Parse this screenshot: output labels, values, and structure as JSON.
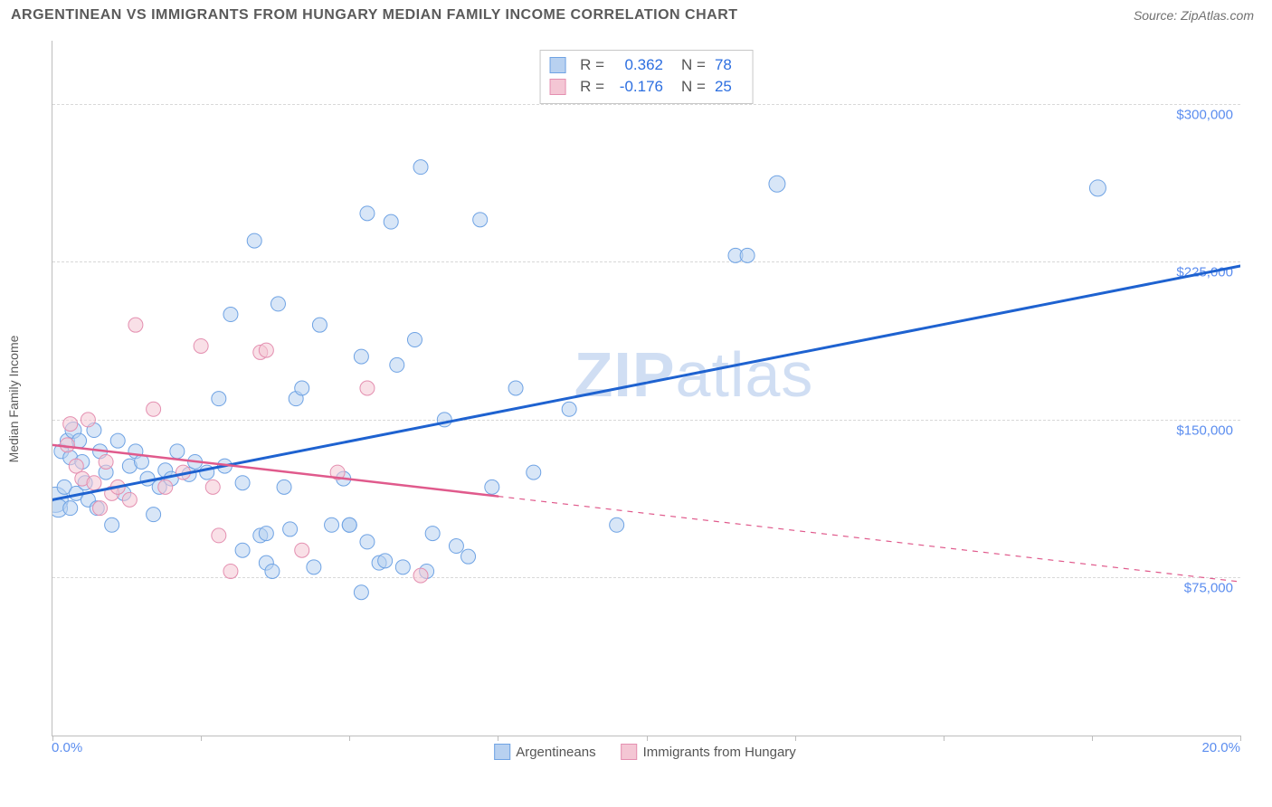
{
  "title": "ARGENTINEAN VS IMMIGRANTS FROM HUNGARY MEDIAN FAMILY INCOME CORRELATION CHART",
  "source": "Source: ZipAtlas.com",
  "ylabel": "Median Family Income",
  "watermark": {
    "bold": "ZIP",
    "thin": "atlas"
  },
  "chart": {
    "type": "scatter",
    "background_color": "#ffffff",
    "grid_color": "#d8d8d8",
    "axis_color": "#bdbdbd",
    "xlim": [
      0,
      20
    ],
    "ylim": [
      0,
      330000
    ],
    "x_ticks": [
      0,
      2.5,
      5,
      7.5,
      10,
      12.5,
      15,
      17.5,
      20
    ],
    "x_tick_labels": {
      "left": "0.0%",
      "right": "20.0%"
    },
    "y_gridlines": [
      75000,
      150000,
      225000,
      300000
    ],
    "y_tick_labels": [
      "$75,000",
      "$150,000",
      "$225,000",
      "$300,000"
    ],
    "series": [
      {
        "name": "Argentineans",
        "fill": "#b8d1f0",
        "stroke": "#6fa3e4",
        "fill_opacity": 0.55,
        "marker_border": 1,
        "points": [
          {
            "x": 0.05,
            "y": 112000,
            "r": 14
          },
          {
            "x": 0.1,
            "y": 108000,
            "r": 10
          },
          {
            "x": 0.15,
            "y": 135000,
            "r": 8
          },
          {
            "x": 0.2,
            "y": 118000,
            "r": 8
          },
          {
            "x": 0.25,
            "y": 140000,
            "r": 8
          },
          {
            "x": 0.3,
            "y": 132000,
            "r": 8
          },
          {
            "x": 0.3,
            "y": 108000,
            "r": 8
          },
          {
            "x": 0.35,
            "y": 145000,
            "r": 9
          },
          {
            "x": 0.4,
            "y": 115000,
            "r": 8
          },
          {
            "x": 0.45,
            "y": 140000,
            "r": 8
          },
          {
            "x": 0.5,
            "y": 130000,
            "r": 8
          },
          {
            "x": 0.55,
            "y": 120000,
            "r": 8
          },
          {
            "x": 0.6,
            "y": 112000,
            "r": 8
          },
          {
            "x": 0.7,
            "y": 145000,
            "r": 8
          },
          {
            "x": 0.75,
            "y": 108000,
            "r": 8
          },
          {
            "x": 0.8,
            "y": 135000,
            "r": 8
          },
          {
            "x": 0.9,
            "y": 125000,
            "r": 8
          },
          {
            "x": 1.0,
            "y": 100000,
            "r": 8
          },
          {
            "x": 1.1,
            "y": 140000,
            "r": 8
          },
          {
            "x": 1.2,
            "y": 115000,
            "r": 8
          },
          {
            "x": 1.3,
            "y": 128000,
            "r": 8
          },
          {
            "x": 1.4,
            "y": 135000,
            "r": 8
          },
          {
            "x": 1.5,
            "y": 130000,
            "r": 8
          },
          {
            "x": 1.6,
            "y": 122000,
            "r": 8
          },
          {
            "x": 1.7,
            "y": 105000,
            "r": 8
          },
          {
            "x": 1.8,
            "y": 118000,
            "r": 8
          },
          {
            "x": 1.9,
            "y": 126000,
            "r": 8
          },
          {
            "x": 2.0,
            "y": 122000,
            "r": 8
          },
          {
            "x": 2.1,
            "y": 135000,
            "r": 8
          },
          {
            "x": 2.3,
            "y": 124000,
            "r": 8
          },
          {
            "x": 2.4,
            "y": 130000,
            "r": 8
          },
          {
            "x": 2.6,
            "y": 125000,
            "r": 8
          },
          {
            "x": 2.8,
            "y": 160000,
            "r": 8
          },
          {
            "x": 2.9,
            "y": 128000,
            "r": 8
          },
          {
            "x": 3.0,
            "y": 200000,
            "r": 8
          },
          {
            "x": 3.2,
            "y": 88000,
            "r": 8
          },
          {
            "x": 3.2,
            "y": 120000,
            "r": 8
          },
          {
            "x": 3.4,
            "y": 235000,
            "r": 8
          },
          {
            "x": 3.5,
            "y": 95000,
            "r": 8
          },
          {
            "x": 3.6,
            "y": 96000,
            "r": 8
          },
          {
            "x": 3.6,
            "y": 82000,
            "r": 8
          },
          {
            "x": 3.7,
            "y": 78000,
            "r": 8
          },
          {
            "x": 3.8,
            "y": 205000,
            "r": 8
          },
          {
            "x": 3.9,
            "y": 118000,
            "r": 8
          },
          {
            "x": 4.0,
            "y": 98000,
            "r": 8
          },
          {
            "x": 4.1,
            "y": 160000,
            "r": 8
          },
          {
            "x": 4.2,
            "y": 165000,
            "r": 8
          },
          {
            "x": 4.4,
            "y": 80000,
            "r": 8
          },
          {
            "x": 4.5,
            "y": 195000,
            "r": 8
          },
          {
            "x": 4.7,
            "y": 100000,
            "r": 8
          },
          {
            "x": 4.9,
            "y": 122000,
            "r": 8
          },
          {
            "x": 5.0,
            "y": 100000,
            "r": 8
          },
          {
            "x": 5.0,
            "y": 100000,
            "r": 8
          },
          {
            "x": 5.2,
            "y": 180000,
            "r": 8
          },
          {
            "x": 5.2,
            "y": 68000,
            "r": 8
          },
          {
            "x": 5.3,
            "y": 248000,
            "r": 8
          },
          {
            "x": 5.3,
            "y": 92000,
            "r": 8
          },
          {
            "x": 5.5,
            "y": 82000,
            "r": 8
          },
          {
            "x": 5.6,
            "y": 83000,
            "r": 8
          },
          {
            "x": 5.7,
            "y": 244000,
            "r": 8
          },
          {
            "x": 5.8,
            "y": 176000,
            "r": 8
          },
          {
            "x": 5.9,
            "y": 80000,
            "r": 8
          },
          {
            "x": 6.1,
            "y": 188000,
            "r": 8
          },
          {
            "x": 6.2,
            "y": 270000,
            "r": 8
          },
          {
            "x": 6.3,
            "y": 78000,
            "r": 8
          },
          {
            "x": 6.4,
            "y": 96000,
            "r": 8
          },
          {
            "x": 6.6,
            "y": 150000,
            "r": 8
          },
          {
            "x": 6.8,
            "y": 90000,
            "r": 8
          },
          {
            "x": 7.0,
            "y": 85000,
            "r": 8
          },
          {
            "x": 7.2,
            "y": 245000,
            "r": 8
          },
          {
            "x": 7.4,
            "y": 118000,
            "r": 8
          },
          {
            "x": 7.8,
            "y": 165000,
            "r": 8
          },
          {
            "x": 8.1,
            "y": 125000,
            "r": 8
          },
          {
            "x": 8.7,
            "y": 155000,
            "r": 8
          },
          {
            "x": 9.5,
            "y": 100000,
            "r": 8
          },
          {
            "x": 11.5,
            "y": 228000,
            "r": 8
          },
          {
            "x": 11.7,
            "y": 228000,
            "r": 8
          },
          {
            "x": 12.2,
            "y": 262000,
            "r": 9
          },
          {
            "x": 17.6,
            "y": 260000,
            "r": 9
          }
        ],
        "trend": {
          "x1": 0,
          "y1": 112000,
          "x2": 20,
          "y2": 223000,
          "solid_to_x": 20,
          "color": "#1e62d0",
          "width": 3
        },
        "R": "0.362",
        "N": "78"
      },
      {
        "name": "Immigrants from Hungary",
        "fill": "#f4c6d4",
        "stroke": "#e48fb0",
        "fill_opacity": 0.55,
        "marker_border": 1,
        "points": [
          {
            "x": 0.25,
            "y": 138000,
            "r": 8
          },
          {
            "x": 0.3,
            "y": 148000,
            "r": 8
          },
          {
            "x": 0.4,
            "y": 128000,
            "r": 8
          },
          {
            "x": 0.5,
            "y": 122000,
            "r": 8
          },
          {
            "x": 0.6,
            "y": 150000,
            "r": 8
          },
          {
            "x": 0.7,
            "y": 120000,
            "r": 8
          },
          {
            "x": 0.8,
            "y": 108000,
            "r": 8
          },
          {
            "x": 0.9,
            "y": 130000,
            "r": 8
          },
          {
            "x": 1.0,
            "y": 115000,
            "r": 8
          },
          {
            "x": 1.1,
            "y": 118000,
            "r": 8
          },
          {
            "x": 1.3,
            "y": 112000,
            "r": 8
          },
          {
            "x": 1.4,
            "y": 195000,
            "r": 8
          },
          {
            "x": 1.7,
            "y": 155000,
            "r": 8
          },
          {
            "x": 1.9,
            "y": 118000,
            "r": 8
          },
          {
            "x": 2.2,
            "y": 125000,
            "r": 8
          },
          {
            "x": 2.5,
            "y": 185000,
            "r": 8
          },
          {
            "x": 2.7,
            "y": 118000,
            "r": 8
          },
          {
            "x": 2.8,
            "y": 95000,
            "r": 8
          },
          {
            "x": 3.0,
            "y": 78000,
            "r": 8
          },
          {
            "x": 3.5,
            "y": 182000,
            "r": 8
          },
          {
            "x": 3.6,
            "y": 183000,
            "r": 8
          },
          {
            "x": 4.2,
            "y": 88000,
            "r": 8
          },
          {
            "x": 4.8,
            "y": 125000,
            "r": 8
          },
          {
            "x": 5.3,
            "y": 165000,
            "r": 8
          },
          {
            "x": 6.2,
            "y": 76000,
            "r": 8
          }
        ],
        "trend": {
          "x1": 0,
          "y1": 138000,
          "x2": 20,
          "y2": 73000,
          "solid_to_x": 7.5,
          "color": "#e05a8c",
          "width": 2.5
        },
        "R": "-0.176",
        "N": "25"
      }
    ]
  },
  "yticklabel_color": "#5b8def",
  "xticklabel_color": "#5b8def",
  "title_color": "#5a5a5a",
  "title_fontsize": 16,
  "label_fontsize": 14
}
